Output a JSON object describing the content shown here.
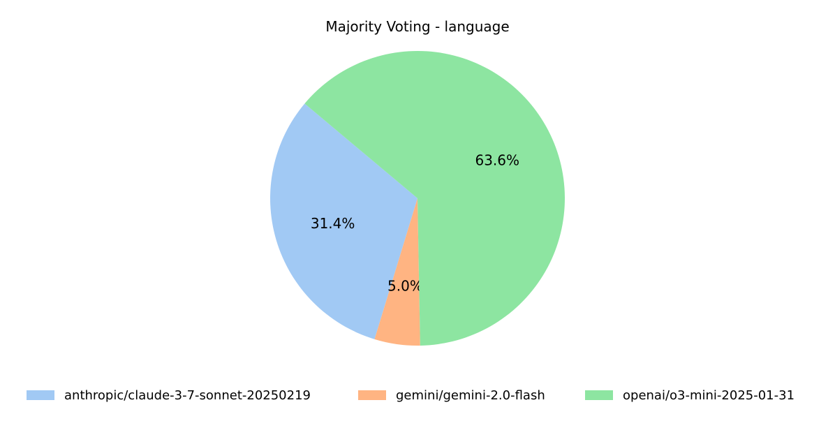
{
  "chart_data": {
    "type": "pie",
    "title": "Majority Voting - language",
    "slices": [
      {
        "label": "anthropic/claude-3-7-sonnet-20250219",
        "value": 31.4,
        "display": "31.4%",
        "color": "#a1c9f4"
      },
      {
        "label": "gemini/gemini-2.0-flash",
        "value": 5.0,
        "display": "5.0%",
        "color": "#ffb482"
      },
      {
        "label": "openai/o3-mini-2025-01-31",
        "value": 63.6,
        "display": "63.6%",
        "color": "#8de5a1"
      }
    ],
    "legend_position": "bottom"
  }
}
